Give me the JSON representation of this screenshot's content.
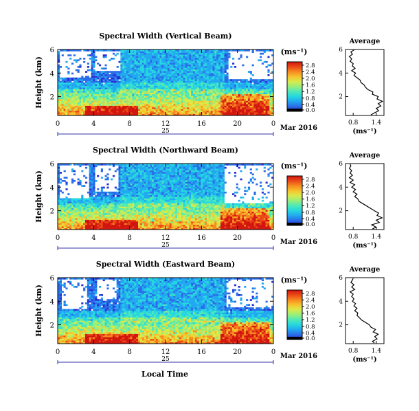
{
  "figure": {
    "colorbar_unit": "(ms⁻¹)",
    "avg_title": "Average",
    "avg_xlabel": "(ms⁻¹)",
    "ylabel": "Height (km)",
    "xlabel": "Local Time",
    "day_label": "25",
    "month_label": "Mar 2016"
  },
  "colors": {
    "colormap": [
      "#000000",
      "#2b2fd6",
      "#2a6de8",
      "#22a8f0",
      "#26d7df",
      "#4fe9b7",
      "#97ee7a",
      "#d9ea4c",
      "#f7c32d",
      "#f78a1f",
      "#ea4a17",
      "#d2160f"
    ],
    "frame": "#000000",
    "time_axis": "#3333aa"
  },
  "chart_data": [
    {
      "type": "heatmap",
      "title": "Spectral Width (Vertical Beam)",
      "x_ticks": [
        "0",
        "4",
        "8",
        "12",
        "16",
        "20",
        "0"
      ],
      "xlim": [
        0,
        24
      ],
      "y_ticks": [
        "2",
        "4",
        "6"
      ],
      "ylim": [
        0.4,
        6
      ],
      "colorbar_ticks": [
        "0.0",
        "0.4",
        "0.8",
        "1.2",
        "1.6",
        "2.0",
        "2.4",
        "2.8"
      ],
      "colorbar_range": [
        0,
        3.0
      ],
      "missing_data_regions": [
        {
          "t": [
            0.2,
            3.6
          ],
          "h": [
            3.6,
            5.9
          ]
        },
        {
          "t": [
            4.1,
            7.0
          ],
          "h": [
            4.2,
            5.9
          ]
        },
        {
          "t": [
            19.0,
            24.0
          ],
          "h": [
            3.5,
            5.9
          ]
        }
      ],
      "average_profile": {
        "title": "Average",
        "xlabel": "(ms⁻¹)",
        "x_ticks": [
          "0.8",
          "1.4"
        ],
        "xlim": [
          0.6,
          1.6
        ],
        "y_ticks": [
          "2",
          "4",
          "6"
        ],
        "ylim": [
          0.4,
          6
        ],
        "points": [
          [
            1.26,
            0.45
          ],
          [
            1.34,
            0.6
          ],
          [
            1.46,
            0.8
          ],
          [
            1.4,
            1.0
          ],
          [
            1.52,
            1.2
          ],
          [
            1.45,
            1.4
          ],
          [
            1.56,
            1.6
          ],
          [
            1.42,
            1.8
          ],
          [
            1.45,
            2.0
          ],
          [
            1.3,
            2.2
          ],
          [
            1.31,
            2.4
          ],
          [
            1.18,
            2.6
          ],
          [
            1.12,
            2.8
          ],
          [
            1.08,
            3.0
          ],
          [
            1.0,
            3.2
          ],
          [
            0.98,
            3.4
          ],
          [
            0.9,
            3.6
          ],
          [
            0.82,
            3.8
          ],
          [
            0.86,
            4.0
          ],
          [
            0.76,
            4.2
          ],
          [
            0.85,
            4.4
          ],
          [
            0.78,
            4.6
          ],
          [
            0.8,
            4.8
          ],
          [
            0.72,
            5.0
          ],
          [
            0.76,
            5.2
          ],
          [
            0.7,
            5.4
          ],
          [
            0.78,
            5.6
          ],
          [
            0.74,
            5.8
          ],
          [
            0.82,
            5.95
          ]
        ]
      }
    },
    {
      "type": "heatmap",
      "title": "Spectral Width (Northward Beam)",
      "x_ticks": [
        "0",
        "4",
        "8",
        "12",
        "16",
        "20",
        "0"
      ],
      "xlim": [
        0,
        24
      ],
      "y_ticks": [
        "2",
        "4",
        "6"
      ],
      "ylim": [
        0.4,
        6
      ],
      "colorbar_ticks": [
        "0.0",
        "0.4",
        "0.8",
        "1.2",
        "1.6",
        "2.0",
        "2.4",
        "2.8"
      ],
      "colorbar_range": [
        0,
        3.0
      ],
      "missing_data_regions": [
        {
          "t": [
            0.3,
            3.4
          ],
          "h": [
            3.0,
            5.9
          ]
        },
        {
          "t": [
            4.2,
            6.8
          ],
          "h": [
            3.6,
            5.9
          ]
        },
        {
          "t": [
            18.5,
            24.0
          ],
          "h": [
            2.6,
            5.9
          ]
        }
      ],
      "average_profile": {
        "title": "Average",
        "xlabel": "(ms⁻¹)",
        "x_ticks": [
          "0.8",
          "1.4"
        ],
        "xlim": [
          0.6,
          1.6
        ],
        "y_ticks": [
          "2",
          "4",
          "6"
        ],
        "ylim": [
          0.4,
          6
        ],
        "points": [
          [
            1.3,
            0.45
          ],
          [
            1.4,
            0.6
          ],
          [
            1.28,
            0.8
          ],
          [
            1.48,
            1.0
          ],
          [
            1.4,
            1.2
          ],
          [
            1.55,
            1.4
          ],
          [
            1.42,
            1.6
          ],
          [
            1.46,
            1.8
          ],
          [
            1.35,
            2.0
          ],
          [
            1.25,
            2.2
          ],
          [
            1.15,
            2.4
          ],
          [
            1.05,
            2.6
          ],
          [
            0.95,
            2.8
          ],
          [
            0.92,
            3.0
          ],
          [
            0.84,
            3.2
          ],
          [
            0.9,
            3.4
          ],
          [
            0.8,
            3.6
          ],
          [
            0.86,
            3.8
          ],
          [
            0.76,
            4.0
          ],
          [
            0.84,
            4.2
          ],
          [
            0.72,
            4.4
          ],
          [
            0.8,
            4.6
          ],
          [
            0.7,
            4.8
          ],
          [
            0.78,
            5.0
          ],
          [
            0.72,
            5.2
          ],
          [
            0.76,
            5.4
          ],
          [
            0.7,
            5.6
          ],
          [
            0.74,
            5.8
          ],
          [
            0.72,
            5.95
          ]
        ]
      }
    },
    {
      "type": "heatmap",
      "title": "Spectral Width (Eastward Beam)",
      "x_ticks": [
        "0",
        "4",
        "8",
        "12",
        "16",
        "20",
        "0"
      ],
      "xlim": [
        0,
        24
      ],
      "y_ticks": [
        "2",
        "4",
        "6"
      ],
      "ylim": [
        0.4,
        6
      ],
      "colorbar_ticks": [
        "0.0",
        "0.4",
        "0.8",
        "1.2",
        "1.6",
        "2.0",
        "2.4",
        "2.8"
      ],
      "colorbar_range": [
        0,
        3.0
      ],
      "missing_data_regions": [
        {
          "t": [
            0.4,
            3.3
          ],
          "h": [
            3.4,
            5.9
          ]
        },
        {
          "t": [
            4.3,
            6.6
          ],
          "h": [
            4.2,
            5.9
          ]
        },
        {
          "t": [
            18.8,
            24.0
          ],
          "h": [
            3.5,
            5.9
          ]
        }
      ],
      "average_profile": {
        "title": "Average",
        "xlabel": "(ms⁻¹)",
        "x_ticks": [
          "0.8",
          "1.4"
        ],
        "xlim": [
          0.6,
          1.6
        ],
        "y_ticks": [
          "2",
          "4",
          "6"
        ],
        "ylim": [
          0.4,
          6
        ],
        "points": [
          [
            1.35,
            0.45
          ],
          [
            1.3,
            0.6
          ],
          [
            1.42,
            0.8
          ],
          [
            1.36,
            1.0
          ],
          [
            1.45,
            1.2
          ],
          [
            1.32,
            1.4
          ],
          [
            1.38,
            1.6
          ],
          [
            1.26,
            1.8
          ],
          [
            1.22,
            2.0
          ],
          [
            1.12,
            2.2
          ],
          [
            1.02,
            2.4
          ],
          [
            0.96,
            2.6
          ],
          [
            0.9,
            2.8
          ],
          [
            0.92,
            3.0
          ],
          [
            0.84,
            3.2
          ],
          [
            0.9,
            3.4
          ],
          [
            0.82,
            3.6
          ],
          [
            0.86,
            3.8
          ],
          [
            0.78,
            4.0
          ],
          [
            0.82,
            4.2
          ],
          [
            0.76,
            4.4
          ],
          [
            0.8,
            4.6
          ],
          [
            0.72,
            4.8
          ],
          [
            0.84,
            5.0
          ],
          [
            0.76,
            5.2
          ],
          [
            0.82,
            5.4
          ],
          [
            0.74,
            5.6
          ],
          [
            0.78,
            5.8
          ],
          [
            0.8,
            5.95
          ]
        ]
      }
    }
  ]
}
